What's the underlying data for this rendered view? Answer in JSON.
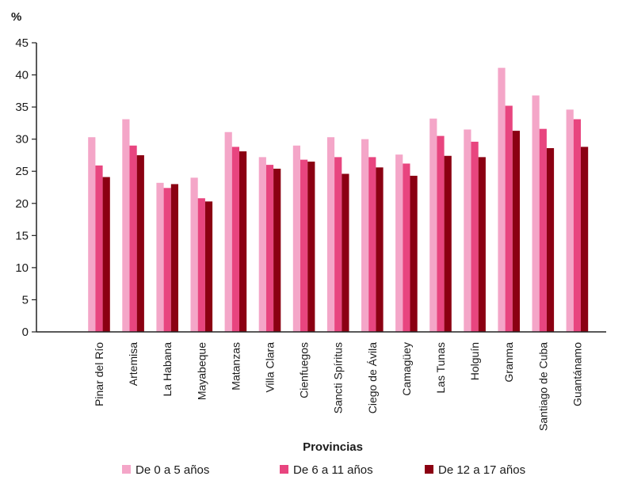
{
  "chart_data": {
    "type": "bar",
    "y_unit_label": "%",
    "xlabel": "Provincias",
    "ylim": [
      0,
      45
    ],
    "y_ticks": [
      0,
      5,
      10,
      15,
      20,
      25,
      30,
      35,
      40,
      45
    ],
    "categories": [
      "Pinar del Río",
      "Artemisa",
      "La Habana",
      "Mayabeque",
      "Matanzas",
      "Villa Clara",
      "Cienfuegos",
      "Sancti Spíritus",
      "Ciego de Ávila",
      "Camagüey",
      "Las Tunas",
      "Holguín",
      "Granma",
      "Santiago de Cuba",
      "Guantánamo"
    ],
    "series": [
      {
        "name": "De 0 a 5 años",
        "color": "#f4a6c8",
        "values": [
          30.3,
          33.1,
          23.2,
          24.0,
          31.1,
          27.2,
          29.0,
          30.3,
          30.0,
          27.6,
          33.2,
          31.5,
          41.1,
          36.8,
          34.6
        ]
      },
      {
        "name": "De 6 a 11 años",
        "color": "#e8457f",
        "values": [
          25.9,
          29.0,
          22.4,
          20.8,
          28.8,
          26.0,
          26.8,
          27.2,
          27.2,
          26.2,
          30.5,
          29.6,
          35.2,
          31.6,
          33.1
        ]
      },
      {
        "name": "De 12 a 17 años",
        "color": "#8b0012",
        "values": [
          24.1,
          27.5,
          23.0,
          20.3,
          28.1,
          25.4,
          26.5,
          24.6,
          25.6,
          24.3,
          27.4,
          27.2,
          31.3,
          28.6,
          28.8
        ]
      }
    ],
    "legend_position": "bottom",
    "grid": false
  }
}
